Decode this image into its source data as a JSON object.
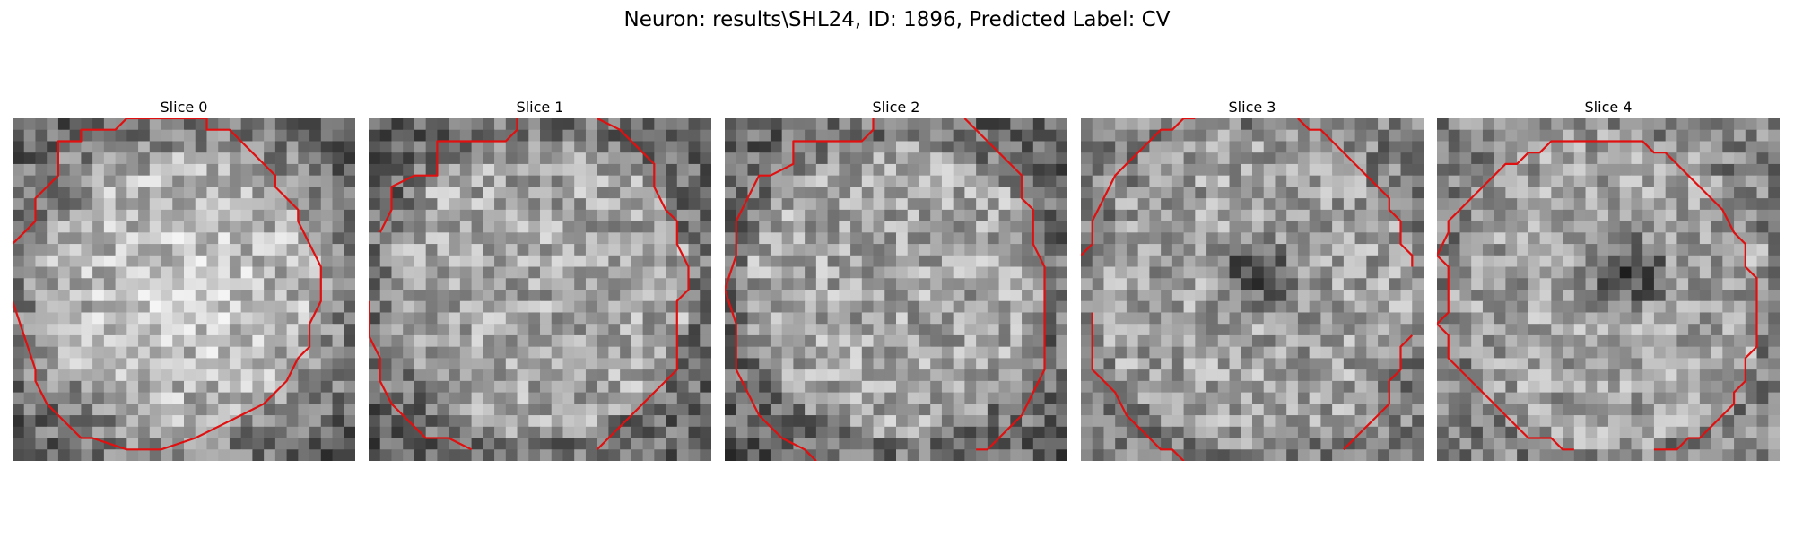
{
  "figure": {
    "title": "Neuron: results\\SHL24, ID: 1896, Predicted Label: CV"
  },
  "panels": [
    {
      "title": "Slice 0",
      "dark_center": false
    },
    {
      "title": "Slice 1",
      "dark_center": false
    },
    {
      "title": "Slice 2",
      "dark_center": false
    },
    {
      "title": "Slice 3",
      "dark_center": true
    },
    {
      "title": "Slice 4",
      "dark_center": true
    }
  ],
  "image": {
    "colormap": "gray",
    "grid_size": 30
  },
  "contour": {
    "color": "#e01010"
  }
}
